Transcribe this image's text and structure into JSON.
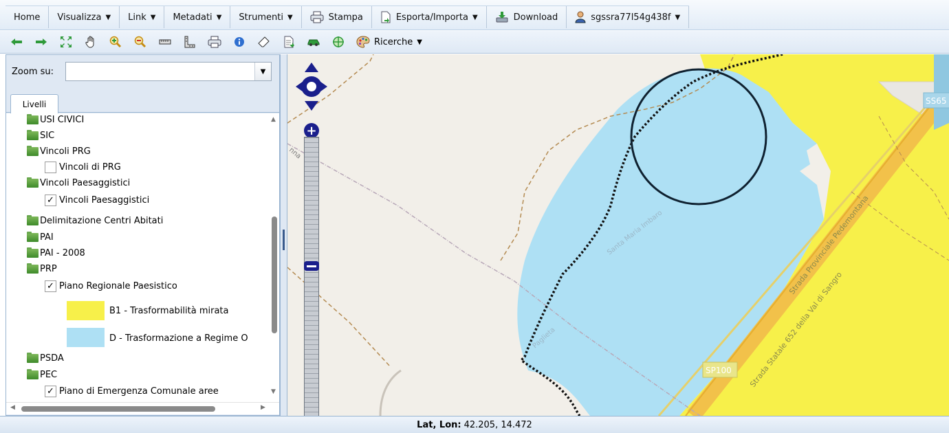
{
  "menubar": {
    "items": [
      {
        "label": "Home",
        "caret": ""
      },
      {
        "label": "Visualizza",
        "caret": "▼"
      },
      {
        "label": "Link",
        "caret": "▼"
      },
      {
        "label": "Metadati",
        "caret": "▼"
      },
      {
        "label": "Strumenti",
        "caret": "▼"
      },
      {
        "label": "Stampa",
        "caret": ""
      },
      {
        "label": "Esporta/Importa",
        "caret": "▼"
      },
      {
        "label": "Download",
        "caret": ""
      },
      {
        "label": "sgssra77l54g438f",
        "caret": "▼"
      }
    ]
  },
  "toolbar": {
    "icons": [
      "arrow-left-icon",
      "arrow-right-icon",
      "full-extent-icon",
      "pan-hand-icon",
      "zoom-in-icon",
      "zoom-out-icon",
      "measure-ruler-icon",
      "measure-area-icon",
      "print-icon",
      "info-icon",
      "eraser-icon",
      "document-icon",
      "car-icon",
      "crosshair-icon"
    ],
    "ricerche_label": "Ricerche",
    "ricerche_caret": "▼"
  },
  "panel": {
    "zoom_label": "Zoom su:",
    "zoom_value": "",
    "tab_label": "Livelli",
    "tree": [
      {
        "label": "USI CIVICI",
        "kind": "folder"
      },
      {
        "label": "SIC",
        "kind": "folder"
      },
      {
        "label": "Vincoli PRG",
        "kind": "folder"
      },
      {
        "label": "Vincoli di PRG",
        "kind": "check",
        "checked": false
      },
      {
        "label": "Vincoli Paesaggistici",
        "kind": "folder"
      },
      {
        "label": "Vincoli Paesaggistici",
        "kind": "check",
        "checked": true
      },
      {
        "label": "Delimitazione Centri Abitati",
        "kind": "folder"
      },
      {
        "label": "PAI",
        "kind": "folder"
      },
      {
        "label": "PAI - 2008",
        "kind": "folder"
      },
      {
        "label": "PRP",
        "kind": "folder"
      },
      {
        "label": "Piano Regionale Paesistico",
        "kind": "check",
        "checked": true
      },
      {
        "label": "PSDA",
        "kind": "folder"
      },
      {
        "label": "PEC",
        "kind": "folder"
      },
      {
        "label": "Piano di Emergenza Comunale aree",
        "kind": "check",
        "checked": true
      }
    ],
    "legend": [
      {
        "label": "B1 - Trasformabilità mirata",
        "color": "#f7f04a"
      },
      {
        "label": "D - Trasformazione a Regime O",
        "color": "#aee0f4"
      }
    ],
    "check_mark": "✓"
  },
  "map": {
    "labels": {
      "ss65": "SS65",
      "sp100": "SP100",
      "strada_provinciale": "Strada Provinciale Pedemontana",
      "strada_statale": "Strada Statale 652 della Val di Sangro",
      "santa_maria": "Santa Maria Imbaro",
      "paglieta": "Paglieta",
      "nna": "nna"
    },
    "colors": {
      "yellow": "#f7f04a",
      "blue": "#aee0f4",
      "background": "#f2efe9"
    }
  },
  "status": {
    "label": "Lat, Lon:",
    "value": "42.205, 14.472"
  }
}
